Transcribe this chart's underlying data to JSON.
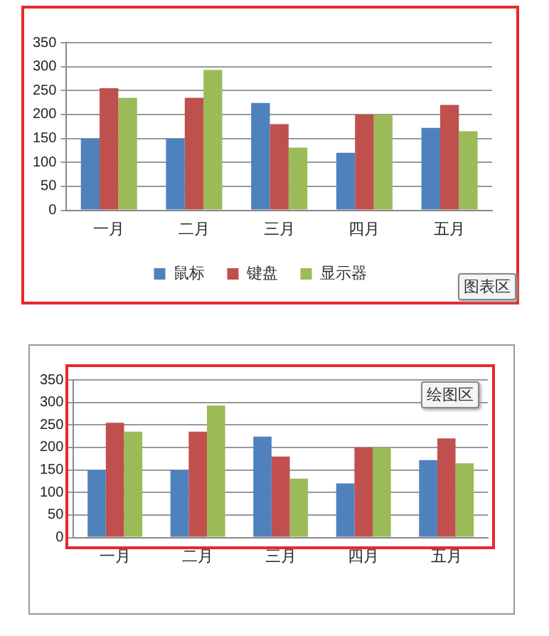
{
  "chart_data": [
    {
      "type": "bar",
      "categories": [
        "一月",
        "二月",
        "三月",
        "四月",
        "五月"
      ],
      "series": [
        {
          "name": "鼠标",
          "color": "#4f81bd",
          "values": [
            150,
            150,
            224,
            120,
            172
          ]
        },
        {
          "name": "键盘",
          "color": "#c0504d",
          "values": [
            255,
            235,
            180,
            200,
            220
          ]
        },
        {
          "name": "显示器",
          "color": "#9bbb59",
          "values": [
            235,
            293,
            131,
            200,
            165
          ]
        }
      ],
      "ylim": [
        0,
        350
      ],
      "yticks": [
        0,
        50,
        100,
        150,
        200,
        250,
        300,
        350
      ],
      "grid": "y",
      "legend": "bottom",
      "annotations": [
        "图表区"
      ]
    },
    {
      "type": "bar",
      "categories": [
        "一月",
        "二月",
        "三月",
        "四月",
        "五月"
      ],
      "series": [
        {
          "color": "#4f81bd",
          "values": [
            150,
            150,
            224,
            120,
            172
          ]
        },
        {
          "color": "#c0504d",
          "values": [
            255,
            235,
            180,
            200,
            220
          ]
        },
        {
          "color": "#9bbb59",
          "values": [
            235,
            293,
            131,
            200,
            165
          ]
        }
      ],
      "ylim": [
        0,
        350
      ],
      "yticks": [
        0,
        50,
        100,
        150,
        200,
        250,
        300,
        350
      ],
      "grid": "y",
      "annotations": [
        "绘图区"
      ]
    }
  ]
}
